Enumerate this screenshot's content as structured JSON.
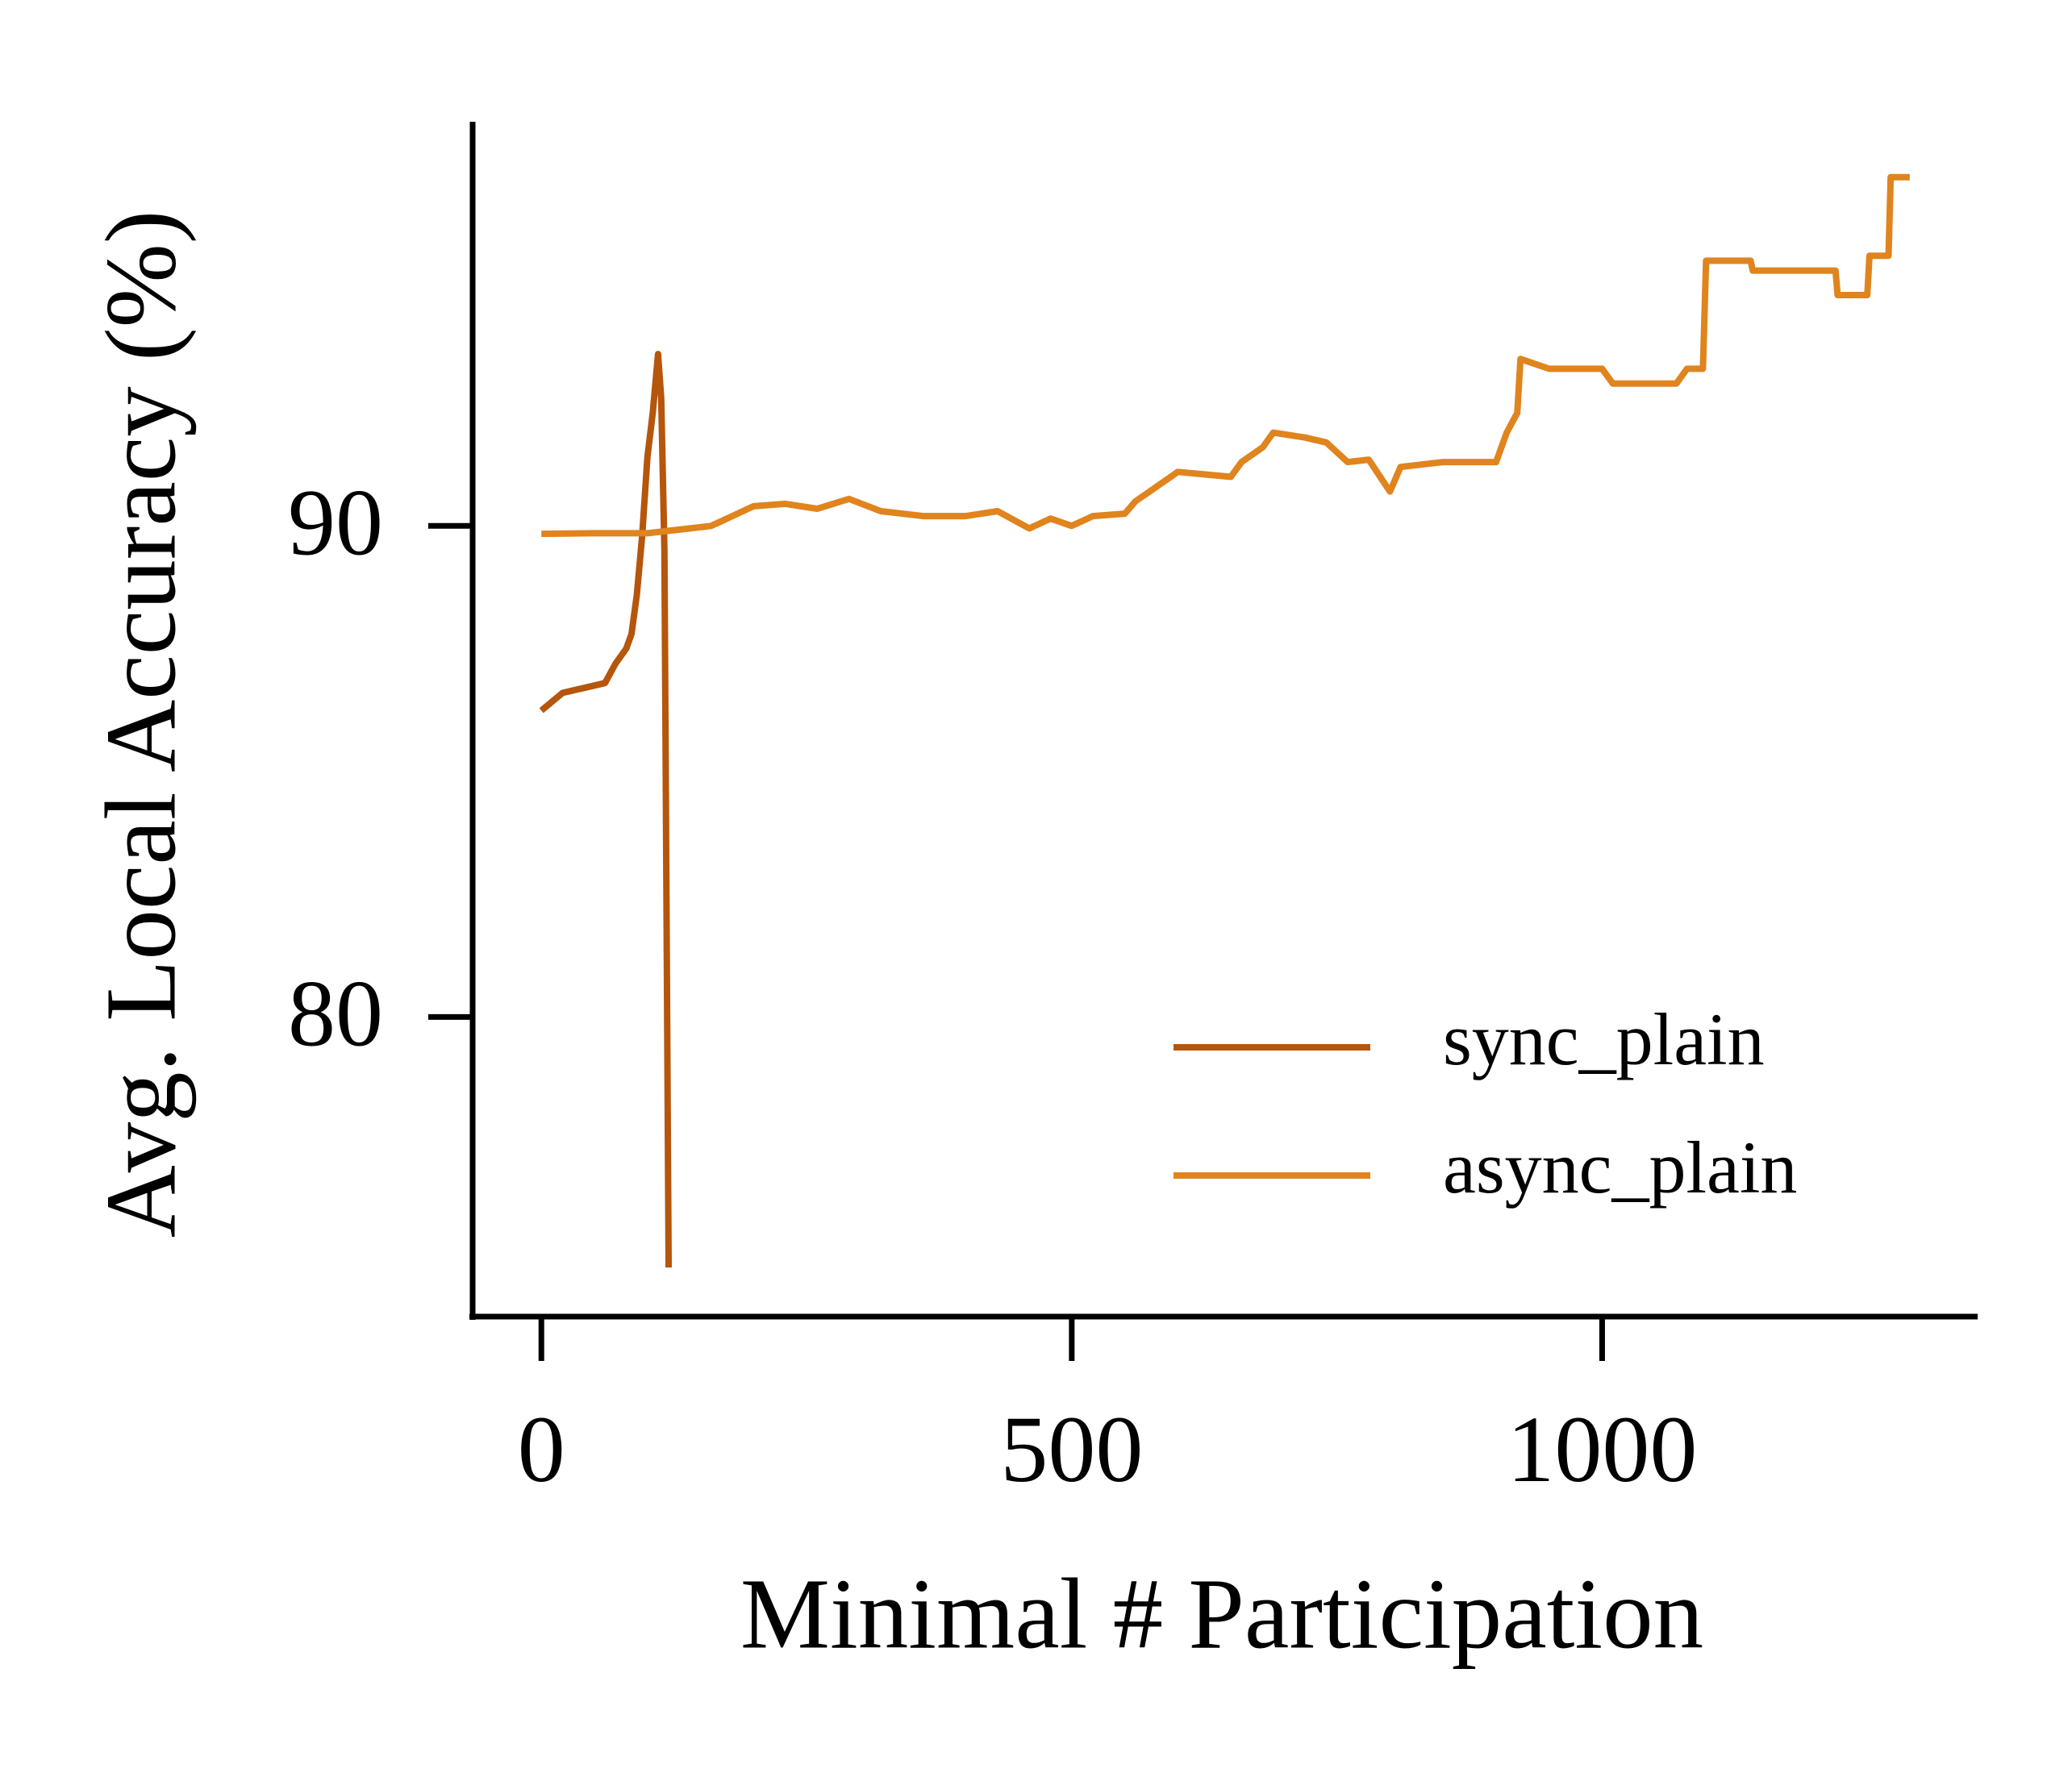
{
  "chart_data": {
    "type": "line",
    "x_label": "Minimal # Participation",
    "y_label": "Avg. Local Accuracy (%)",
    "xlim": [
      -64.8,
      1354
    ],
    "ylim": [
      73.9,
      98.23
    ],
    "xticks": [
      0,
      500,
      1000
    ],
    "yticks": [
      80,
      90
    ],
    "legend": "lower right",
    "series": [
      {
        "name": "sync_plain",
        "color": "#b5560c",
        "x": [
          0,
          20,
          40,
          60,
          70,
          80,
          85,
          90,
          95,
          100,
          105,
          110,
          113,
          116,
          120
        ],
        "values": [
          86.24,
          86.6,
          86.7,
          86.8,
          87.2,
          87.5,
          87.8,
          88.6,
          89.8,
          91.4,
          92.3,
          93.5,
          92.6,
          89.5,
          74.9
        ]
      },
      {
        "name": "async_plain",
        "color": "#e0841e",
        "x": [
          0,
          50,
          100,
          120,
          140,
          160,
          200,
          230,
          260,
          290,
          320,
          360,
          400,
          430,
          460,
          480,
          500,
          520,
          550,
          560,
          580,
          600,
          650,
          660,
          680,
          690,
          720,
          740,
          760,
          780,
          800,
          810,
          850,
          900,
          910,
          920,
          923,
          950,
          1000,
          1010,
          1070,
          1080,
          1095,
          1098,
          1140,
          1142,
          1220,
          1222,
          1250,
          1252,
          1270,
          1272,
          1290
        ],
        "values": [
          89.84,
          89.85,
          89.85,
          89.9,
          89.95,
          90.0,
          90.4,
          90.45,
          90.35,
          90.55,
          90.3,
          90.2,
          90.2,
          90.3,
          89.95,
          90.15,
          90.0,
          90.2,
          90.25,
          90.5,
          90.8,
          91.1,
          91.0,
          91.3,
          91.6,
          91.9,
          91.8,
          91.7,
          91.3,
          91.35,
          90.7,
          91.2,
          91.3,
          91.3,
          91.9,
          92.3,
          93.4,
          93.2,
          93.2,
          92.9,
          92.9,
          93.2,
          93.2,
          95.4,
          95.4,
          95.2,
          95.2,
          94.7,
          94.7,
          95.5,
          95.5,
          97.1,
          97.1
        ]
      }
    ]
  }
}
